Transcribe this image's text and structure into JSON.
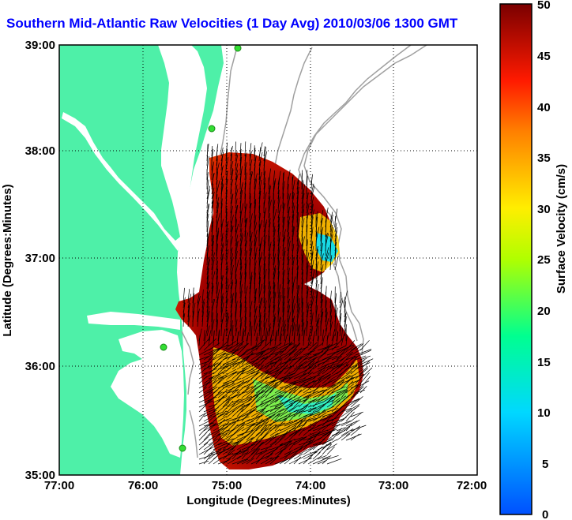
{
  "title": "Southern Mid-Atlantic Raw Velocities (1 Day Avg) 2010/03/06 1300 GMT",
  "x_axis": {
    "label": "Longitude (Degrees:Minutes)",
    "ticks": [
      "77:00",
      "76:00",
      "75:00",
      "74:00",
      "73:00",
      "72:00"
    ]
  },
  "y_axis": {
    "label": "Latitude (Degrees:Minutes)",
    "ticks": [
      "39:00",
      "38:00",
      "37:00",
      "36:00",
      "35:00"
    ]
  },
  "colorbar": {
    "label": "Surface Velocity (cm/s)",
    "ticks": [
      "50",
      "45",
      "40",
      "35",
      "30",
      "25",
      "20",
      "15",
      "10",
      "5",
      "0"
    ],
    "min": 0,
    "max": 50
  },
  "colors": {
    "land": "#4ef0a8",
    "bathymetry": "#a0a0a0",
    "station": "#33dd33",
    "title": "#0000ff"
  }
}
